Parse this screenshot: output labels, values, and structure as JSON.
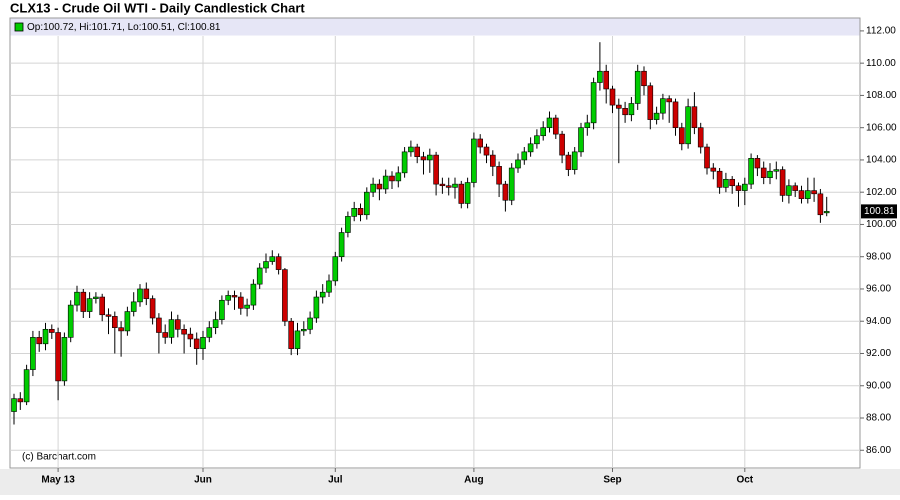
{
  "chart_data": {
    "type": "candlestick",
    "title": "CLX13 - Crude Oil WTI - Daily Candlestick Chart",
    "legend": "Op:100.72, Hi:101.71, Lo:100.51, Cl:100.81",
    "watermark": "(c) Barchart.com",
    "up_color": "#00cc00",
    "down_color": "#cc0000",
    "grid": true,
    "ylim": [
      84.9,
      112.8
    ],
    "yticks": [
      {
        "value": 86,
        "label": "86.00"
      },
      {
        "value": 88,
        "label": "88.00"
      },
      {
        "value": 90,
        "label": "90.00"
      },
      {
        "value": 92,
        "label": "92.00"
      },
      {
        "value": 94,
        "label": "94.00"
      },
      {
        "value": 96,
        "label": "96.00"
      },
      {
        "value": 98,
        "label": "98.00"
      },
      {
        "value": 100,
        "label": "100.00"
      },
      {
        "value": 102,
        "label": "102.00"
      },
      {
        "value": 104,
        "label": "104.00"
      },
      {
        "value": 106,
        "label": "106.00"
      },
      {
        "value": 108,
        "label": "108.00"
      },
      {
        "value": 110,
        "label": "110.00"
      },
      {
        "value": 112,
        "label": "112.00"
      }
    ],
    "categories": [
      null,
      null,
      null,
      null,
      null,
      null,
      null,
      "May 13",
      null,
      null,
      null,
      null,
      null,
      null,
      null,
      null,
      null,
      null,
      null,
      null,
      null,
      null,
      null,
      null,
      null,
      null,
      null,
      null,
      null,
      null,
      "Jun",
      null,
      null,
      null,
      null,
      null,
      null,
      null,
      null,
      null,
      null,
      null,
      null,
      null,
      null,
      null,
      null,
      null,
      null,
      null,
      null,
      "Jul",
      null,
      null,
      null,
      null,
      null,
      null,
      null,
      null,
      null,
      null,
      null,
      null,
      null,
      null,
      null,
      null,
      null,
      null,
      null,
      null,
      null,
      "Aug",
      null,
      null,
      null,
      null,
      null,
      null,
      null,
      null,
      null,
      null,
      null,
      null,
      null,
      null,
      null,
      null,
      null,
      null,
      null,
      null,
      null,
      "Sep",
      null,
      null,
      null,
      null,
      null,
      null,
      null,
      null,
      null,
      null,
      null,
      null,
      null,
      null,
      null,
      null,
      null,
      null,
      null,
      null,
      "Oct",
      null,
      null,
      null,
      null,
      null,
      null,
      null,
      null,
      null,
      null,
      null,
      null,
      null
    ],
    "open": [
      88.4,
      89.2,
      89.0,
      91.0,
      93.0,
      92.6,
      93.5,
      93.3,
      90.3,
      93.0,
      95.0,
      95.8,
      94.6,
      95.4,
      95.5,
      94.4,
      94.3,
      93.6,
      93.4,
      94.6,
      95.2,
      96.0,
      95.4,
      94.2,
      93.3,
      93.0,
      94.1,
      93.5,
      93.2,
      92.9,
      92.3,
      93.0,
      93.6,
      94.1,
      95.3,
      95.6,
      95.5,
      94.8,
      95.0,
      96.3,
      97.3,
      97.7,
      98.0,
      97.2,
      94.0,
      92.3,
      93.4,
      93.5,
      94.2,
      95.5,
      95.8,
      96.5,
      98.0,
      99.5,
      100.5,
      101.0,
      100.6,
      102.0,
      102.5,
      102.2,
      103.0,
      102.7,
      103.2,
      104.5,
      104.8,
      104.2,
      104.0,
      104.3,
      102.5,
      102.4,
      102.3,
      102.5,
      101.3,
      102.6,
      105.3,
      104.8,
      104.3,
      103.6,
      102.5,
      101.5,
      103.5,
      104.0,
      104.5,
      105.0,
      105.5,
      106.0,
      106.6,
      105.6,
      104.3,
      103.4,
      104.5,
      106.0,
      106.3,
      108.8,
      109.5,
      108.4,
      107.4,
      107.2,
      106.8,
      107.5,
      109.5,
      108.6,
      106.5,
      106.9,
      107.8,
      107.6,
      106.0,
      105.0,
      107.3,
      106.0,
      104.8,
      103.5,
      103.3,
      102.3,
      102.8,
      102.4,
      102.1,
      102.5,
      104.1,
      103.5,
      102.9,
      103.3,
      103.4,
      101.8,
      102.4,
      102.1,
      101.6,
      102.1,
      101.9,
      100.72
    ],
    "high": [
      89.5,
      89.6,
      91.3,
      93.4,
      93.4,
      93.9,
      93.8,
      93.6,
      93.3,
      95.3,
      96.2,
      96.0,
      95.8,
      95.8,
      95.7,
      94.8,
      94.6,
      94.0,
      94.9,
      95.8,
      96.3,
      96.4,
      95.6,
      94.5,
      93.8,
      94.6,
      94.4,
      93.8,
      93.6,
      93.3,
      93.4,
      94.0,
      94.6,
      95.6,
      95.9,
      95.9,
      95.8,
      95.4,
      96.6,
      97.6,
      98.2,
      98.4,
      98.2,
      97.3,
      94.2,
      93.9,
      94.0,
      94.6,
      95.9,
      96.3,
      96.9,
      98.3,
      99.8,
      100.8,
      101.4,
      101.3,
      102.3,
      102.9,
      102.8,
      103.4,
      103.3,
      103.6,
      104.8,
      105.2,
      105.0,
      104.5,
      104.7,
      104.5,
      102.9,
      102.9,
      102.9,
      102.7,
      102.9,
      105.7,
      105.6,
      105.0,
      104.6,
      103.9,
      102.7,
      103.8,
      104.4,
      104.8,
      105.4,
      105.9,
      106.4,
      107.0,
      106.8,
      105.8,
      104.5,
      104.8,
      106.3,
      106.8,
      109.1,
      111.3,
      109.9,
      108.6,
      107.8,
      107.6,
      107.9,
      109.9,
      109.8,
      108.8,
      107.3,
      108.1,
      108.0,
      107.8,
      106.3,
      107.8,
      108.2,
      106.3,
      105.0,
      103.8,
      103.5,
      103.2,
      103.0,
      102.6,
      102.9,
      104.4,
      104.3,
      103.9,
      103.8,
      103.9,
      103.6,
      102.8,
      102.6,
      102.4,
      102.9,
      102.9,
      102.2,
      101.71
    ],
    "low": [
      87.6,
      88.5,
      88.8,
      90.6,
      92.1,
      92.2,
      92.9,
      89.1,
      90.0,
      92.7,
      94.6,
      94.2,
      94.2,
      95.1,
      94.0,
      93.2,
      92.0,
      91.8,
      93.1,
      94.3,
      94.9,
      95.0,
      93.8,
      92.0,
      92.6,
      92.6,
      93.0,
      92.0,
      92.4,
      91.3,
      91.6,
      92.7,
      93.2,
      93.8,
      95.0,
      94.7,
      94.4,
      94.3,
      94.7,
      96.0,
      97.0,
      97.5,
      96.9,
      93.7,
      91.9,
      91.9,
      93.1,
      93.2,
      93.9,
      95.1,
      95.5,
      96.2,
      97.7,
      99.2,
      100.2,
      100.2,
      100.3,
      101.7,
      101.5,
      101.9,
      102.2,
      102.3,
      102.9,
      104.2,
      103.8,
      103.1,
      103.2,
      101.8,
      101.9,
      101.8,
      101.6,
      101.0,
      101.0,
      102.3,
      104.4,
      103.8,
      103.0,
      101.7,
      100.8,
      101.2,
      103.2,
      103.7,
      104.2,
      104.7,
      105.2,
      105.7,
      105.3,
      103.8,
      103.0,
      103.1,
      104.2,
      105.5,
      105.9,
      108.3,
      107.5,
      106.9,
      103.8,
      106.3,
      106.4,
      107.1,
      108.0,
      105.9,
      106.2,
      106.5,
      106.3,
      105.5,
      104.6,
      104.7,
      105.6,
      104.4,
      103.1,
      102.8,
      101.9,
      102.0,
      101.9,
      101.1,
      101.2,
      102.2,
      103.0,
      102.5,
      102.5,
      102.8,
      101.4,
      101.3,
      101.7,
      101.3,
      101.3,
      101.4,
      100.1,
      100.51
    ],
    "close": [
      89.2,
      89.0,
      91.0,
      93.0,
      92.6,
      93.5,
      93.3,
      90.3,
      93.0,
      95.0,
      95.8,
      94.6,
      95.4,
      95.5,
      94.4,
      94.3,
      93.6,
      93.4,
      94.6,
      95.2,
      96.0,
      95.4,
      94.2,
      93.3,
      93.0,
      94.1,
      93.5,
      93.2,
      92.9,
      92.3,
      93.0,
      93.6,
      94.1,
      95.3,
      95.6,
      95.5,
      94.8,
      95.0,
      96.3,
      97.3,
      97.7,
      98.0,
      97.2,
      94.0,
      92.3,
      93.4,
      93.5,
      94.2,
      95.5,
      95.8,
      96.5,
      98.0,
      99.5,
      100.5,
      101.0,
      100.6,
      102.0,
      102.5,
      102.2,
      103.0,
      102.7,
      103.2,
      104.5,
      104.8,
      104.2,
      104.0,
      104.3,
      102.5,
      102.4,
      102.3,
      102.5,
      101.3,
      102.6,
      105.3,
      104.8,
      104.3,
      103.6,
      102.5,
      101.5,
      103.5,
      104.0,
      104.5,
      105.0,
      105.5,
      106.0,
      106.6,
      105.6,
      104.3,
      103.4,
      104.5,
      106.0,
      106.3,
      108.8,
      109.5,
      108.4,
      107.4,
      107.2,
      106.8,
      107.5,
      109.5,
      108.6,
      106.5,
      106.9,
      107.8,
      107.6,
      106.0,
      105.0,
      107.3,
      106.0,
      104.8,
      103.5,
      103.3,
      102.3,
      102.8,
      102.4,
      102.1,
      102.5,
      104.1,
      103.5,
      102.9,
      103.3,
      103.4,
      101.8,
      102.4,
      102.1,
      101.6,
      102.1,
      101.9,
      100.6,
      100.81
    ]
  }
}
